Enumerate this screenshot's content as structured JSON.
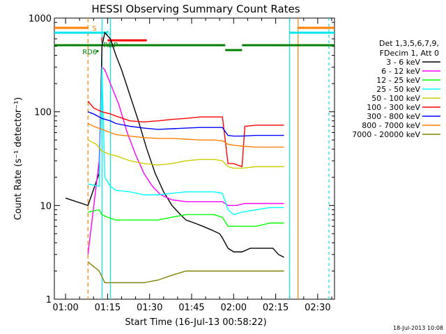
{
  "chart_data": {
    "type": "line",
    "title": "HESSI Observing Summary Count Rates",
    "xlabel": "Start Time (16-Jul-13 00:58:22)",
    "ylabel": "Count Rate (s⁻¹ detector⁻¹)",
    "x_ticks": [
      "01:00",
      "01:15",
      "01:30",
      "01:45",
      "02:00",
      "02:15",
      "02:30"
    ],
    "x_range_min": [
      -2,
      98
    ],
    "y_ticks": [
      "1",
      "10",
      "100",
      "1000"
    ],
    "ylim": [
      1,
      1000
    ],
    "y_scale": "log",
    "legend_header": [
      "Det 1,3,5,6,7,9,",
      "FDecim 1, Att 0"
    ],
    "legend_position": "right",
    "footer_date": "18-Jul-2013 10:08",
    "flags": [
      {
        "label": "S",
        "color": "#ff7f00"
      },
      {
        "label": "N",
        "color": "#00e5ee"
      },
      {
        "label": "F",
        "color": "#ff0000"
      },
      {
        "label": "RDP",
        "color": "#008000"
      },
      {
        "label": "RD6",
        "color": "#008000"
      }
    ],
    "series": [
      {
        "name": "3 - 6 keV",
        "color": "#000000",
        "points": [
          [
            2,
            12
          ],
          [
            10,
            10
          ],
          [
            14,
            22
          ],
          [
            15,
            500
          ],
          [
            16,
            700
          ],
          [
            18,
            600
          ],
          [
            20,
            400
          ],
          [
            22,
            280
          ],
          [
            25,
            150
          ],
          [
            28,
            80
          ],
          [
            31,
            40
          ],
          [
            34,
            22
          ],
          [
            37,
            14
          ],
          [
            40,
            10
          ],
          [
            43,
            8
          ],
          [
            45,
            7
          ],
          [
            48,
            6.5
          ],
          [
            51,
            6
          ],
          [
            54,
            5.5
          ],
          [
            57,
            5
          ],
          [
            58,
            4.5
          ],
          [
            60,
            3.5
          ],
          [
            62,
            3.2
          ],
          [
            65,
            3.2
          ],
          [
            68,
            3.5
          ],
          [
            70,
            3.5
          ],
          [
            73,
            3.5
          ],
          [
            76,
            3.5
          ],
          [
            78,
            3
          ],
          [
            80,
            2.8
          ]
        ]
      },
      {
        "name": "6 - 12 keV",
        "color": "#ff00ff",
        "points": [
          [
            10,
            3
          ],
          [
            14,
            30
          ],
          [
            15,
            300
          ],
          [
            16,
            280
          ],
          [
            18,
            200
          ],
          [
            21,
            120
          ],
          [
            24,
            60
          ],
          [
            27,
            35
          ],
          [
            30,
            22
          ],
          [
            33,
            16
          ],
          [
            36,
            13
          ],
          [
            40,
            11.5
          ],
          [
            45,
            11
          ],
          [
            50,
            11
          ],
          [
            55,
            11
          ],
          [
            58,
            11
          ],
          [
            60,
            10
          ],
          [
            63,
            10
          ],
          [
            66,
            10.5
          ],
          [
            70,
            10.5
          ],
          [
            75,
            10.5
          ],
          [
            80,
            10.5
          ]
        ]
      },
      {
        "name": "12 - 25 keV",
        "color": "#00ff00",
        "points": [
          [
            10,
            8.5
          ],
          [
            14,
            9
          ],
          [
            15,
            8
          ],
          [
            17,
            7.5
          ],
          [
            20,
            7
          ],
          [
            25,
            7
          ],
          [
            30,
            7
          ],
          [
            35,
            7
          ],
          [
            40,
            7.5
          ],
          [
            45,
            8
          ],
          [
            50,
            8
          ],
          [
            55,
            8
          ],
          [
            58,
            7.5
          ],
          [
            60,
            6
          ],
          [
            62,
            6
          ],
          [
            65,
            6
          ],
          [
            70,
            6
          ],
          [
            75,
            6.5
          ],
          [
            80,
            6.5
          ]
        ]
      },
      {
        "name": "25 - 50 keV",
        "color": "#00ffff",
        "points": [
          [
            10,
            17
          ],
          [
            14,
            16
          ],
          [
            15,
            300
          ],
          [
            16,
            20
          ],
          [
            18,
            16
          ],
          [
            20,
            14.5
          ],
          [
            25,
            14
          ],
          [
            30,
            13
          ],
          [
            35,
            13
          ],
          [
            40,
            13.5
          ],
          [
            45,
            14
          ],
          [
            50,
            14
          ],
          [
            55,
            14
          ],
          [
            58,
            13.5
          ],
          [
            60,
            9
          ],
          [
            62,
            8
          ],
          [
            65,
            8.5
          ],
          [
            70,
            9
          ],
          [
            75,
            9.5
          ],
          [
            80,
            9.5
          ]
        ]
      },
      {
        "name": "50 - 100 keV",
        "color": "#cccc00",
        "points": [
          [
            10,
            50
          ],
          [
            13,
            45
          ],
          [
            15,
            38
          ],
          [
            18,
            35
          ],
          [
            20,
            34
          ],
          [
            25,
            30
          ],
          [
            30,
            28
          ],
          [
            35,
            27
          ],
          [
            40,
            28
          ],
          [
            45,
            30
          ],
          [
            50,
            31
          ],
          [
            55,
            31
          ],
          [
            58,
            30
          ],
          [
            60,
            26
          ],
          [
            62,
            25
          ],
          [
            65,
            25
          ],
          [
            70,
            26
          ],
          [
            75,
            26
          ],
          [
            80,
            26
          ]
        ]
      },
      {
        "name": "100 - 300 keV",
        "color": "#ff0000",
        "points": [
          [
            10,
            130
          ],
          [
            12,
            110
          ],
          [
            15,
            100
          ],
          [
            18,
            95
          ],
          [
            20,
            90
          ],
          [
            25,
            80
          ],
          [
            30,
            78
          ],
          [
            35,
            80
          ],
          [
            40,
            83
          ],
          [
            45,
            85
          ],
          [
            50,
            88
          ],
          [
            55,
            88
          ],
          [
            58,
            88
          ],
          [
            60,
            28
          ],
          [
            62,
            28
          ],
          [
            65,
            26
          ],
          [
            66,
            70
          ],
          [
            70,
            72
          ],
          [
            75,
            72
          ],
          [
            80,
            72
          ]
        ]
      },
      {
        "name": "300 - 800 keV",
        "color": "#0000ff",
        "points": [
          [
            10,
            100
          ],
          [
            12,
            95
          ],
          [
            15,
            85
          ],
          [
            18,
            80
          ],
          [
            20,
            75
          ],
          [
            25,
            70
          ],
          [
            30,
            67
          ],
          [
            35,
            65
          ],
          [
            40,
            66
          ],
          [
            45,
            67
          ],
          [
            50,
            68
          ],
          [
            55,
            68
          ],
          [
            58,
            68
          ],
          [
            60,
            56
          ],
          [
            62,
            55
          ],
          [
            65,
            55
          ],
          [
            70,
            56
          ],
          [
            75,
            56
          ],
          [
            80,
            56
          ]
        ]
      },
      {
        "name": "800 - 7000 keV",
        "color": "#ff7f00",
        "points": [
          [
            10,
            75
          ],
          [
            12,
            70
          ],
          [
            15,
            65
          ],
          [
            18,
            60
          ],
          [
            20,
            57
          ],
          [
            25,
            55
          ],
          [
            30,
            53
          ],
          [
            35,
            52
          ],
          [
            40,
            52
          ],
          [
            45,
            51
          ],
          [
            50,
            50
          ],
          [
            55,
            50
          ],
          [
            58,
            49
          ],
          [
            60,
            45
          ],
          [
            62,
            44
          ],
          [
            65,
            43
          ],
          [
            70,
            42
          ],
          [
            75,
            42
          ],
          [
            80,
            42
          ]
        ]
      },
      {
        "name": "7000 - 20000 keV",
        "color": "#808000",
        "points": [
          [
            10,
            2.5
          ],
          [
            14,
            2
          ],
          [
            16,
            1.5
          ],
          [
            20,
            1.5
          ],
          [
            25,
            1.5
          ],
          [
            30,
            1.5
          ],
          [
            35,
            1.6
          ],
          [
            40,
            1.8
          ],
          [
            45,
            2
          ],
          [
            50,
            2
          ],
          [
            55,
            2
          ],
          [
            60,
            2
          ],
          [
            65,
            2
          ],
          [
            70,
            2
          ],
          [
            75,
            2
          ],
          [
            80,
            2
          ]
        ]
      }
    ]
  }
}
